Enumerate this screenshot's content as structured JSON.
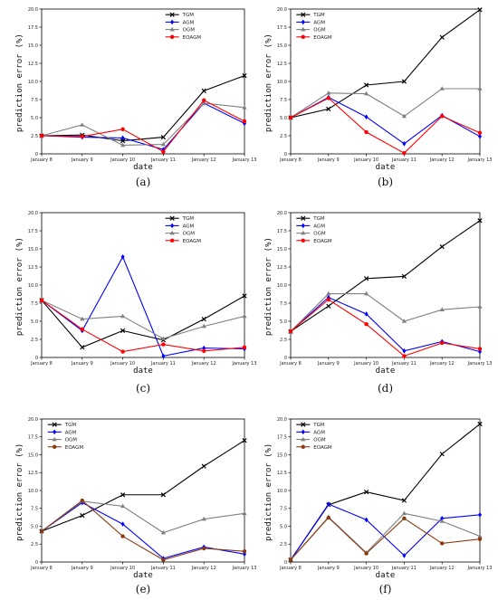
{
  "figure": {
    "panels": [
      {
        "caption": "(a)"
      },
      {
        "caption": "(b)"
      },
      {
        "caption": "(c)"
      },
      {
        "caption": "(d)"
      },
      {
        "caption": "(e)"
      },
      {
        "caption": "(f)"
      }
    ]
  },
  "series_styles": {
    "TGM": {
      "color": "#000000",
      "marker": "x"
    },
    "AGM": {
      "color": "#0000ff",
      "marker": "diamond"
    },
    "OGM": {
      "color": "#808080",
      "marker": "triangle"
    },
    "EOAGM_red": {
      "color": "#ff0000",
      "marker": "circle"
    },
    "EOAGM_brown": {
      "color": "#8b3a0f",
      "marker": "circle"
    }
  },
  "chart_data": [
    {
      "type": "line",
      "caption": "(a)",
      "xlabel": "date",
      "ylabel": "prediction error",
      "yunit": "(%)",
      "categories": [
        "January 8",
        "January 9",
        "January 10",
        "January 11",
        "January 12",
        "January 13"
      ],
      "ylim": [
        0,
        20
      ],
      "yticks": [
        "0",
        "2.5",
        "5.0",
        "7.5",
        "10.0",
        "12.5",
        "15.0",
        "17.5",
        "20.0"
      ],
      "legend_position": "top-right",
      "series": [
        {
          "name": "TGM",
          "color": "#000000",
          "marker": "x",
          "values": [
            2.5,
            2.6,
            1.8,
            2.3,
            8.7,
            10.8
          ]
        },
        {
          "name": "AGM",
          "color": "#0000ff",
          "marker": "diamond",
          "values": [
            2.5,
            2.3,
            2.2,
            0.6,
            7.0,
            4.2
          ]
        },
        {
          "name": "OGM",
          "color": "#808080",
          "marker": "triangle",
          "values": [
            2.5,
            4.0,
            1.2,
            1.3,
            7.0,
            6.4
          ]
        },
        {
          "name": "EOAGM",
          "color": "#ff0000",
          "marker": "circle",
          "values": [
            2.5,
            2.4,
            3.4,
            0.3,
            7.4,
            4.5
          ]
        }
      ]
    },
    {
      "type": "line",
      "caption": "(b)",
      "xlabel": "date",
      "ylabel": "prediction error",
      "yunit": "(%)",
      "categories": [
        "January 8",
        "January 9",
        "January 10",
        "January 11",
        "January 12",
        "January 13"
      ],
      "ylim": [
        0,
        20
      ],
      "yticks": [
        "0",
        "2.5",
        "5.0",
        "7.5",
        "10.0",
        "12.5",
        "15.0",
        "17.5",
        "20.0"
      ],
      "legend_position": "top-left",
      "series": [
        {
          "name": "TGM",
          "color": "#000000",
          "marker": "x",
          "values": [
            5.0,
            6.2,
            9.5,
            10.0,
            16.1,
            19.9
          ]
        },
        {
          "name": "AGM",
          "color": "#0000ff",
          "marker": "diamond",
          "values": [
            5.0,
            7.8,
            5.1,
            1.4,
            5.3,
            2.4
          ]
        },
        {
          "name": "OGM",
          "color": "#808080",
          "marker": "triangle",
          "values": [
            5.0,
            8.4,
            8.3,
            5.2,
            9.0,
            9.0
          ]
        },
        {
          "name": "EOAGM",
          "color": "#ff0000",
          "marker": "circle",
          "values": [
            5.0,
            7.7,
            3.0,
            0.1,
            5.2,
            2.9
          ]
        }
      ]
    },
    {
      "type": "line",
      "caption": "(c)",
      "xlabel": "date",
      "ylabel": "prediction error",
      "yunit": "(%)",
      "categories": [
        "January 8",
        "January 9",
        "January 10",
        "January 11",
        "January 12",
        "January 13"
      ],
      "ylim": [
        0,
        20
      ],
      "yticks": [
        "0",
        "2.5",
        "5.0",
        "7.5",
        "10.0",
        "12.5",
        "15.0",
        "17.5",
        "20.0"
      ],
      "legend_position": "top-right",
      "series": [
        {
          "name": "TGM",
          "color": "#000000",
          "marker": "x",
          "values": [
            7.9,
            1.4,
            3.7,
            2.4,
            5.3,
            8.5
          ]
        },
        {
          "name": "AGM",
          "color": "#0000ff",
          "marker": "diamond",
          "values": [
            7.9,
            3.7,
            13.9,
            0.2,
            1.3,
            1.2
          ]
        },
        {
          "name": "OGM",
          "color": "#808080",
          "marker": "triangle",
          "values": [
            7.9,
            5.3,
            5.7,
            2.6,
            4.3,
            5.7
          ]
        },
        {
          "name": "EOAGM",
          "color": "#ff0000",
          "marker": "circle",
          "values": [
            7.9,
            3.9,
            0.8,
            1.8,
            0.9,
            1.4
          ]
        }
      ]
    },
    {
      "type": "line",
      "caption": "(d)",
      "xlabel": "date",
      "ylabel": "prediction error",
      "yunit": "(%)",
      "categories": [
        "January 8",
        "January 9",
        "January 10",
        "January 11",
        "January 12",
        "January 13"
      ],
      "ylim": [
        0,
        20
      ],
      "yticks": [
        "0",
        "2.5",
        "5.0",
        "7.5",
        "10.0",
        "12.5",
        "15.0",
        "17.5",
        "20.0"
      ],
      "legend_position": "top-left",
      "series": [
        {
          "name": "TGM",
          "color": "#000000",
          "marker": "x",
          "values": [
            3.6,
            7.1,
            10.9,
            11.2,
            15.3,
            18.9
          ]
        },
        {
          "name": "AGM",
          "color": "#0000ff",
          "marker": "diamond",
          "values": [
            3.6,
            8.3,
            6.0,
            0.9,
            2.2,
            0.8
          ]
        },
        {
          "name": "OGM",
          "color": "#808080",
          "marker": "triangle",
          "values": [
            3.6,
            8.8,
            8.8,
            5.0,
            6.6,
            7.0
          ]
        },
        {
          "name": "EOAGM",
          "color": "#ff0000",
          "marker": "circle",
          "values": [
            3.6,
            8.0,
            4.6,
            0.2,
            2.0,
            1.2
          ]
        }
      ]
    },
    {
      "type": "line",
      "caption": "(e)",
      "xlabel": "date",
      "ylabel": "prediction error",
      "yunit": "(%)",
      "categories": [
        "January 8",
        "January 9",
        "January 10",
        "January 11",
        "January 12",
        "January 13"
      ],
      "ylim": [
        0,
        20
      ],
      "yticks": [
        "0",
        "2.5",
        "5.0",
        "7.5",
        "10.0",
        "12.5",
        "15.0",
        "17.5",
        "20.0"
      ],
      "legend_position": "top-left",
      "series": [
        {
          "name": "TGM",
          "color": "#000000",
          "marker": "x",
          "values": [
            4.3,
            6.5,
            9.4,
            9.4,
            13.4,
            17.0
          ]
        },
        {
          "name": "AGM",
          "color": "#0000ff",
          "marker": "diamond",
          "values": [
            4.3,
            8.3,
            5.3,
            0.5,
            2.1,
            1.1
          ]
        },
        {
          "name": "OGM",
          "color": "#808080",
          "marker": "triangle",
          "values": [
            4.3,
            8.5,
            7.8,
            4.1,
            6.0,
            6.8
          ]
        },
        {
          "name": "EOAGM",
          "color": "#8b3a0f",
          "marker": "circle",
          "values": [
            4.3,
            8.6,
            3.6,
            0.3,
            1.9,
            1.5
          ]
        }
      ]
    },
    {
      "type": "line",
      "caption": "(f)",
      "xlabel": "date",
      "ylabel": "prediction error",
      "yunit": "(%)",
      "categories": [
        "January 8",
        "January 9",
        "January 10",
        "January 11",
        "January 12",
        "January 13"
      ],
      "ylim": [
        0,
        20
      ],
      "yticks": [
        "0",
        "2.5",
        "5.0",
        "7.5",
        "10.0",
        "12.5",
        "15.0",
        "17.5",
        "20.0"
      ],
      "legend_position": "top-left",
      "series": [
        {
          "name": "TGM",
          "color": "#000000",
          "marker": "x",
          "values": [
            0.3,
            8.0,
            9.8,
            8.6,
            15.1,
            19.3
          ]
        },
        {
          "name": "AGM",
          "color": "#0000ff",
          "marker": "diamond",
          "values": [
            0.3,
            8.1,
            5.9,
            0.9,
            6.1,
            6.6
          ]
        },
        {
          "name": "OGM",
          "color": "#808080",
          "marker": "triangle",
          "values": [
            0.3,
            6.3,
            1.3,
            6.8,
            5.7,
            3.6
          ]
        },
        {
          "name": "EOAGM",
          "color": "#8b3a0f",
          "marker": "circle",
          "values": [
            0.3,
            6.2,
            1.2,
            6.1,
            2.6,
            3.2
          ]
        }
      ]
    }
  ]
}
